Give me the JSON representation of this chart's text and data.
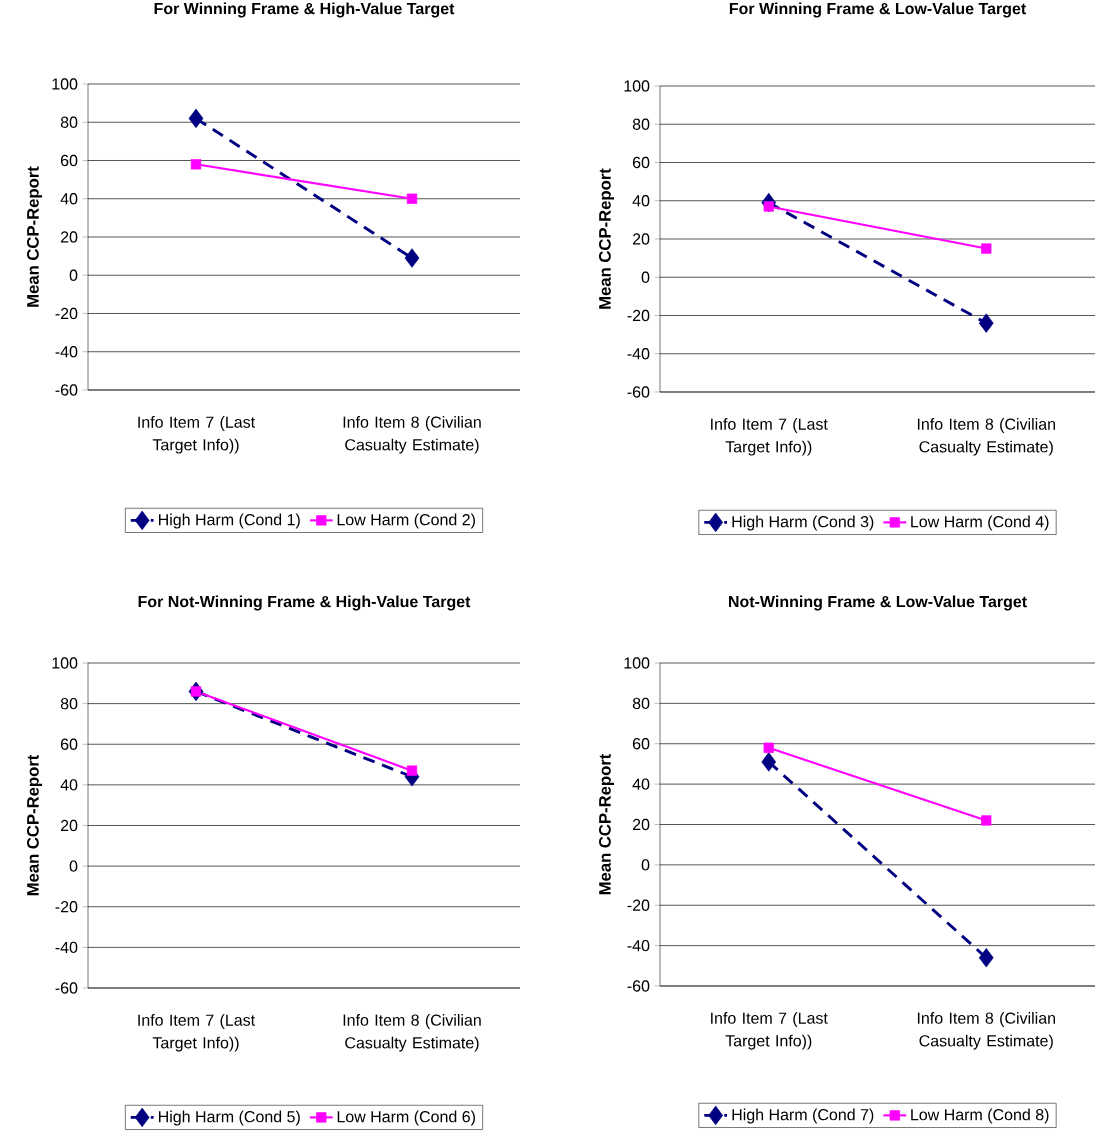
{
  "chart_data": [
    {
      "type": "line",
      "title": "For Winning Frame & High-Value Target",
      "ylabel": "Mean CCP-Report",
      "categories": [
        "Info Item 7 (Last Target Info))",
        "Info Item 8 (Civilian Casualty Estimate)"
      ],
      "series": [
        {
          "name": "High Harm (Cond 1)",
          "color": "#000080",
          "values": [
            82,
            9
          ],
          "marker": "diamond",
          "line_style": "dashed"
        },
        {
          "name": "Low  Harm (Cond 2)",
          "color": "#ff00ff",
          "values": [
            58,
            40
          ],
          "marker": "square",
          "line_style": "solid"
        }
      ],
      "ylim": [
        -60,
        100
      ],
      "yticks": [
        -60,
        -40,
        -20,
        0,
        20,
        40,
        60,
        80,
        100
      ],
      "grid": "y",
      "legend": "bottom"
    },
    {
      "type": "line",
      "title": "For Winning Frame & Low-Value Target",
      "ylabel": "Mean CCP-Report",
      "categories": [
        "Info Item 7 (Last Target Info))",
        "Info Item 8 (Civilian Casualty Estimate)"
      ],
      "series": [
        {
          "name": "High Harm (Cond 3)",
          "color": "#000080",
          "values": [
            39,
            -24
          ],
          "marker": "diamond",
          "line_style": "dashed"
        },
        {
          "name": "Low  Harm (Cond 4)",
          "color": "#ff00ff",
          "values": [
            37,
            15
          ],
          "marker": "square",
          "line_style": "solid"
        }
      ],
      "ylim": [
        -60,
        100
      ],
      "yticks": [
        -60,
        -40,
        -20,
        0,
        20,
        40,
        60,
        80,
        100
      ],
      "grid": "y",
      "legend": "bottom"
    },
    {
      "type": "line",
      "title": "For Not-Winning Frame & High-Value Target",
      "ylabel": "Mean CCP-Report",
      "categories": [
        "Info Item 7 (Last Target Info))",
        "Info Item 8 (Civilian Casualty Estimate)"
      ],
      "series": [
        {
          "name": "High Harm (Cond 5)",
          "color": "#000080",
          "values": [
            86,
            44
          ],
          "marker": "diamond",
          "line_style": "dashed"
        },
        {
          "name": "Low  Harm (Cond 6)",
          "color": "#ff00ff",
          "values": [
            86,
            47
          ],
          "marker": "square",
          "line_style": "solid"
        }
      ],
      "ylim": [
        -60,
        100
      ],
      "yticks": [
        -60,
        -40,
        -20,
        0,
        20,
        40,
        60,
        80,
        100
      ],
      "grid": "y",
      "legend": "bottom"
    },
    {
      "type": "line",
      "title": "Not-Winning Frame & Low-Value Target",
      "ylabel": "Mean CCP-Report",
      "categories": [
        "Info Item 7 (Last Target Info))",
        "Info Item 8 (Civilian Casualty Estimate)"
      ],
      "series": [
        {
          "name": "High Harm (Cond 7)",
          "color": "#000080",
          "values": [
            51,
            -46
          ],
          "marker": "diamond",
          "line_style": "dashed"
        },
        {
          "name": "Low  Harm (Cond 8)",
          "color": "#ff00ff",
          "values": [
            58,
            22
          ],
          "marker": "square",
          "line_style": "solid"
        }
      ],
      "ylim": [
        -60,
        100
      ],
      "yticks": [
        -60,
        -40,
        -20,
        0,
        20,
        40,
        60,
        80,
        100
      ],
      "grid": "y",
      "legend": "bottom"
    }
  ]
}
